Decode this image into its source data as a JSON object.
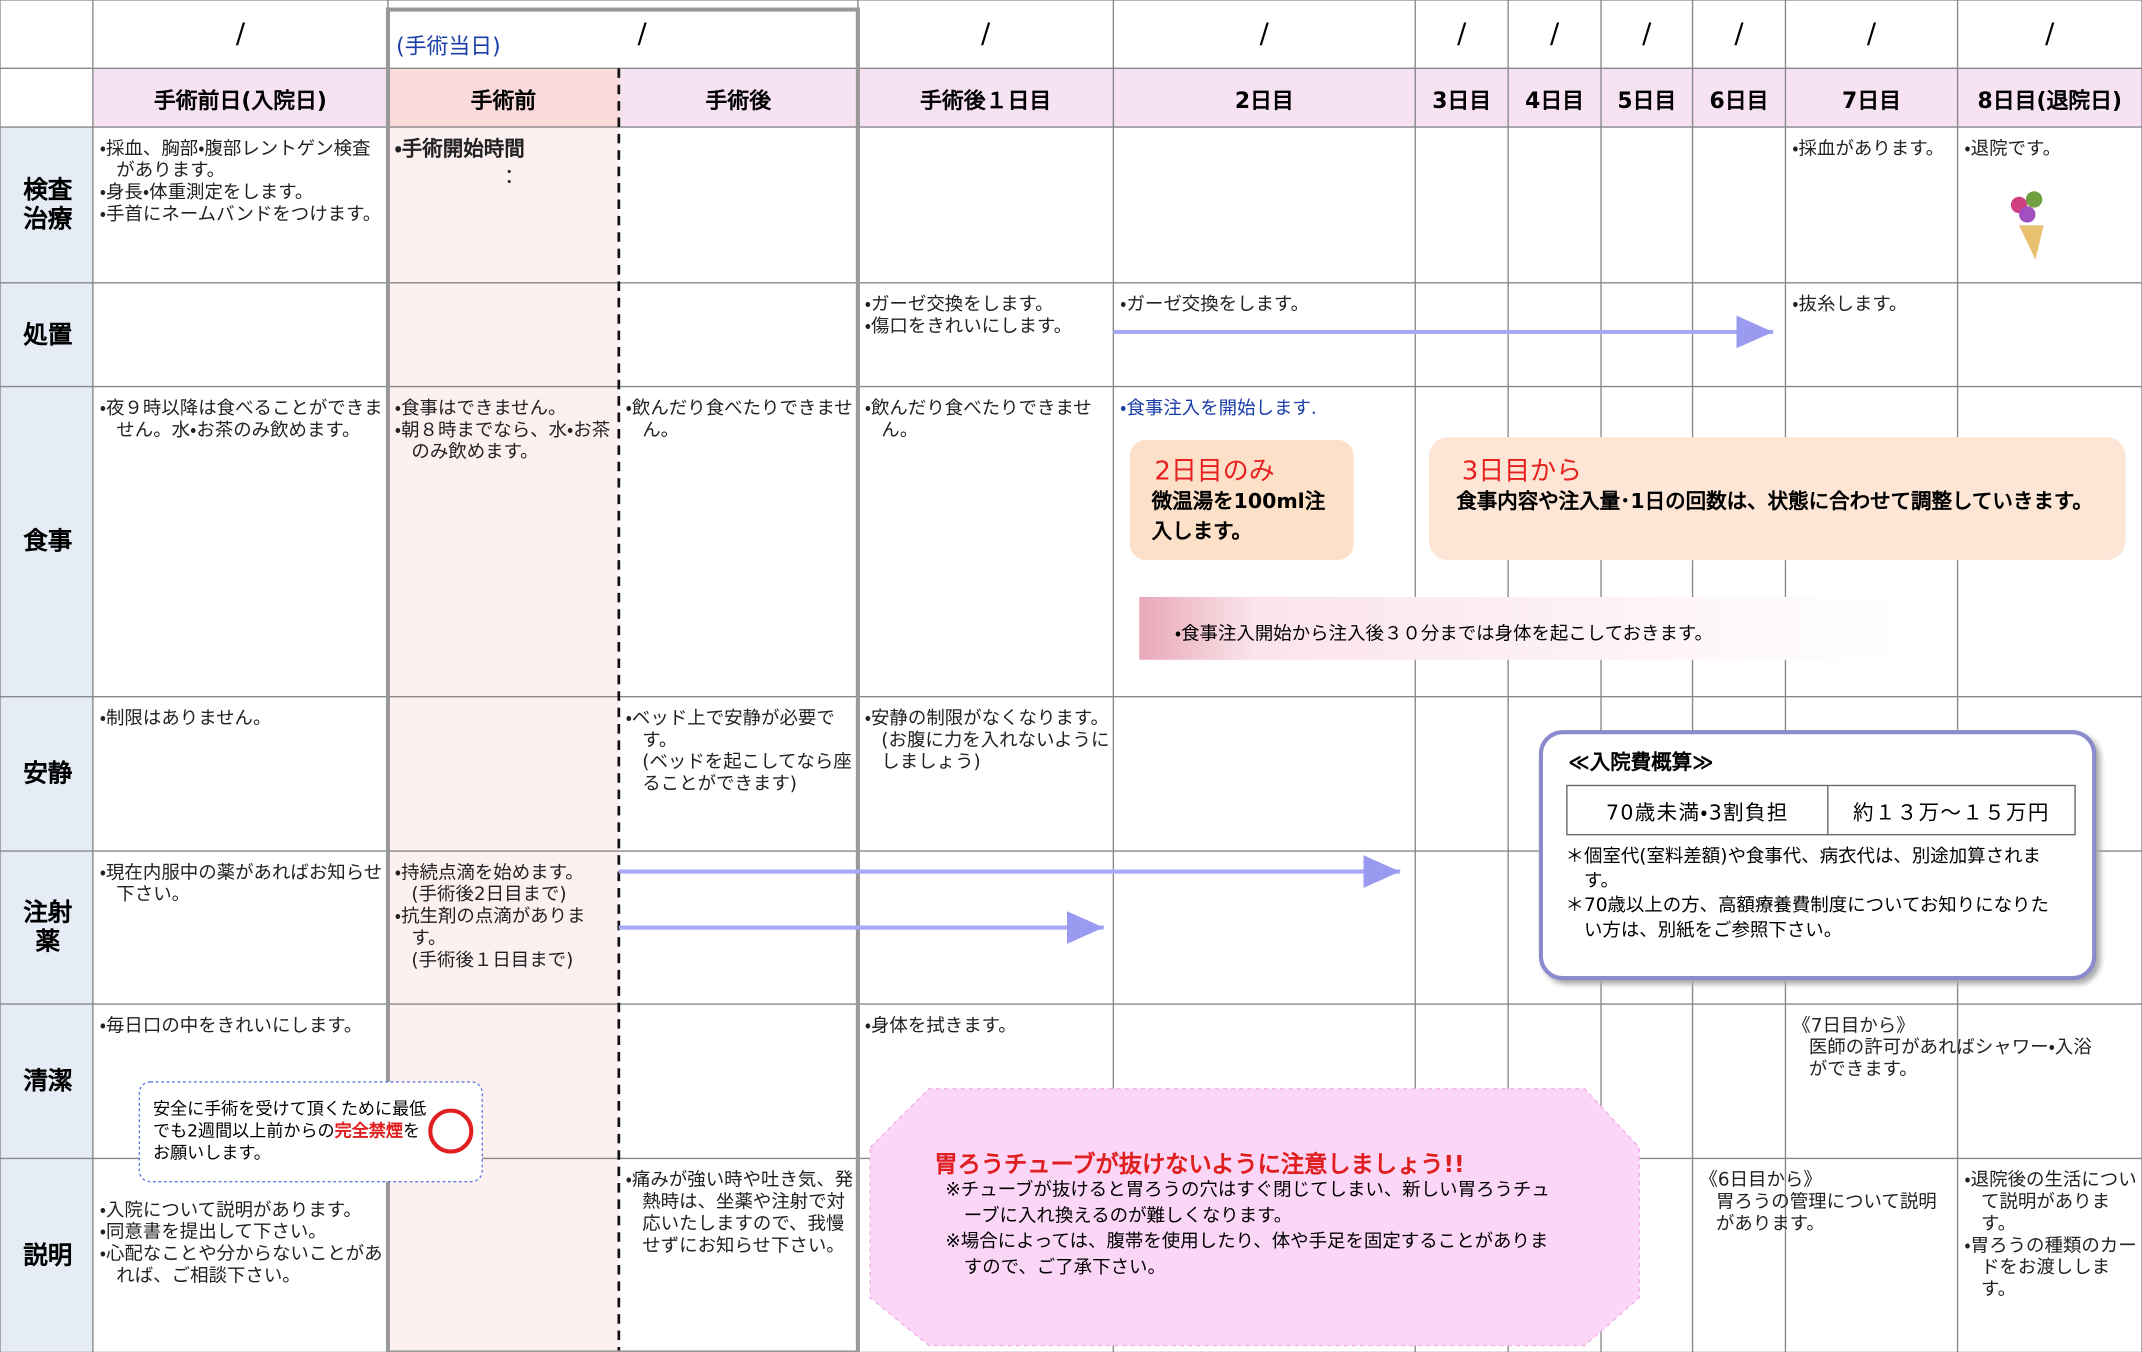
{
  "header": {
    "date_slashes": [
      "/",
      "/",
      "/",
      "/",
      "/",
      "/",
      "/",
      "/",
      "/",
      "/"
    ],
    "day_of_surgery": "(手術当日)",
    "columns": [
      "手術前日(入院日)",
      "手術前",
      "手術後",
      "手術後１日目",
      "2日目",
      "3日目",
      "4日目",
      "5日目",
      "6日目",
      "7日目",
      "8日目(退院日)"
    ]
  },
  "rows": [
    {
      "label": "検査治療",
      "cells": [
        [
          "・採血、胸部・腹部レントゲン検査があります。",
          "・身長・体重測定をします。",
          "・手首にネームバンドをつけます。"
        ],
        [
          "・手術開始時間",
          "："
        ],
        null,
        null,
        null,
        null,
        null,
        null,
        null,
        [
          "・採血があります。"
        ],
        [
          "・退院です。"
        ]
      ]
    },
    {
      "label": "処置",
      "cells": [
        null,
        null,
        null,
        [
          "・ガーゼ交換をします。",
          "・傷口をきれいにします。"
        ],
        [
          "・ガーゼ交換をします。"
        ],
        null,
        null,
        null,
        null,
        [
          "・抜糸します。"
        ],
        null
      ]
    },
    {
      "label": "食事",
      "cells": [
        [
          "・夜９時以降は食べることができません。水・お茶のみ飲めます。"
        ],
        [
          "・食事はできません。",
          "・朝８時までなら、水・お茶のみ飲めます。"
        ],
        [
          "・飲んだり食べたりできません。"
        ],
        [
          "・飲んだり食べたりできません。"
        ],
        [
          "・食事注入を開始します."
        ],
        null,
        null,
        null,
        null,
        null,
        null
      ]
    },
    {
      "label": "安静",
      "cells": [
        [
          "・制限はありません。"
        ],
        null,
        [
          "・ベッド上で安静が必要です。",
          "(ベッドを起こしてなら座ることができます)"
        ],
        [
          "・安静の制限がなくなります。",
          "(お腹に力を入れないようにしましょう)"
        ],
        null,
        null,
        null,
        null,
        null,
        null,
        null
      ]
    },
    {
      "label": "注射薬",
      "cells": [
        [
          "・現在内服中の薬があればお知らせ下さい。"
        ],
        [
          "・持続点滴を始めます。",
          "(手術後2日目まで)",
          "・抗生剤の点滴があります。",
          "(手術後１日目まで)"
        ],
        null,
        null,
        null,
        null,
        null,
        null,
        null,
        null,
        null
      ]
    },
    {
      "label": "清潔",
      "cells": [
        [
          "・毎日口の中をきれいにします。"
        ],
        null,
        null,
        [
          "・身体を拭きます。"
        ],
        null,
        null,
        null,
        null,
        null,
        [
          "《7日目から》",
          "医師の許可があればシャワー・入浴ができます。"
        ],
        null
      ]
    },
    {
      "label": "説明",
      "cells": [
        [
          "・入院について説明があります。",
          "・同意書を提出して下さい。",
          "・心配なことや分からないことがあれば、ご相談下さい。"
        ],
        null,
        [
          "・痛みが強い時や吐き気、発熱時は、坐薬や注射で対応いたしますので、我慢せずにお知らせ下さい。"
        ],
        null,
        null,
        null,
        null,
        null,
        [
          "《6日目から》",
          "胃ろうの管理について説明があります。"
        ],
        null,
        [
          "・退院後の生活について説明があります。",
          "・胃ろうの種類のカードをお渡しします。"
        ]
      ]
    }
  ],
  "meal_notes": {
    "day2_title": "2日目のみ",
    "day2_body": "微温湯を100ml注入します。",
    "day3_title": "3日目から",
    "day3_body": "食事内容や注入量･1日の回数は、状態に合わせて調整していきます。",
    "banner": "・食事注入開始から注入後３０分までは身体を起こしておきます。"
  },
  "cost": {
    "title": "≪入院費概算≫",
    "table": [
      "70歳未満・3割負担",
      "約１３万～１５万円"
    ],
    "notes": [
      "＊個室代(室料差額)や食事代、病衣代は、別途加算されます。",
      "＊70歳以上の方、高額療養費制度についてお知りになりたい方は、別紙をご参照下さい。"
    ]
  },
  "smoking": {
    "before": "安全に手術を受けて頂くために最低でも2週間以上前からの",
    "emphasis": "完全禁煙",
    "after": "をお願いします。"
  },
  "warning": {
    "title": "胃ろうチューブが抜けないように注意しましょう!!",
    "lines": [
      "※チューブが抜けると胃ろうの穴はすぐ閉じてしまい、新しい胃ろうチューブに入れ換えるのが難しくなります。",
      "※場合によっては、腹帯を使用したり、体や手足を固定することがありますので、ご了承下さい。"
    ]
  }
}
